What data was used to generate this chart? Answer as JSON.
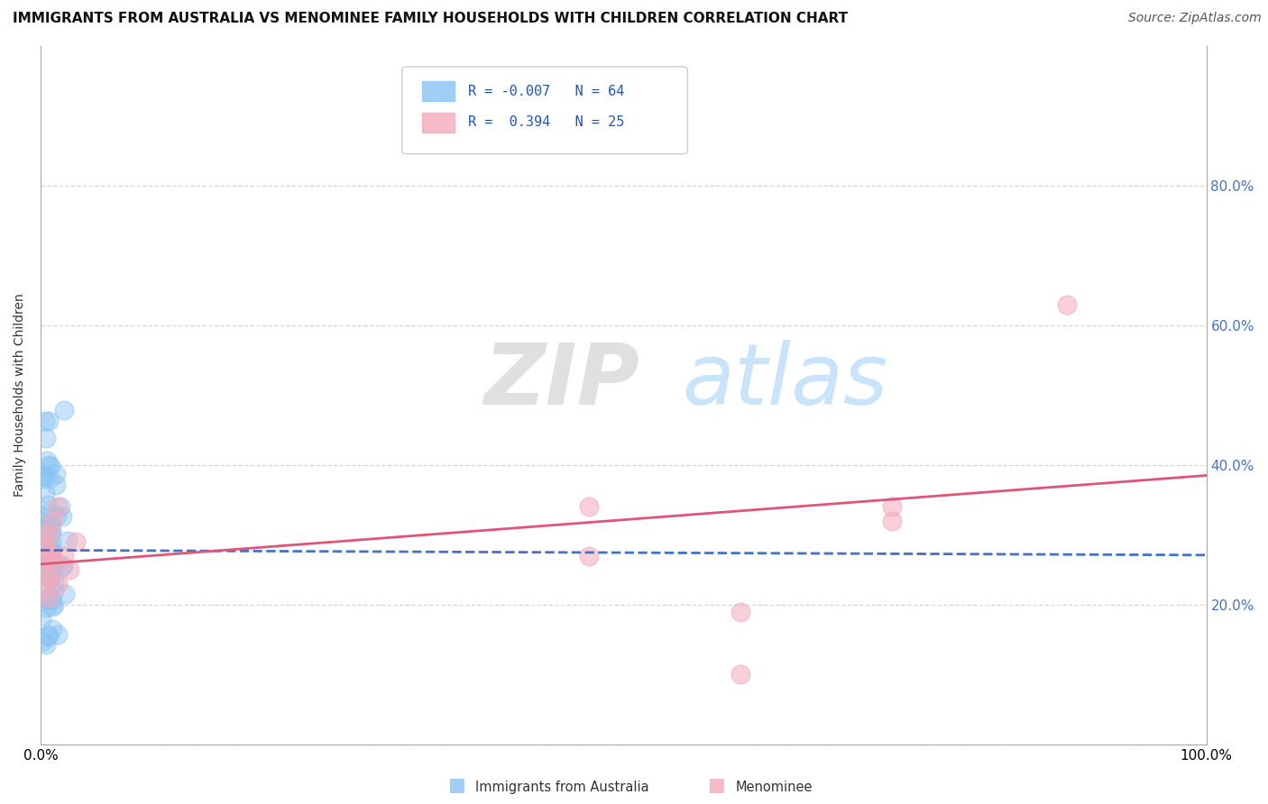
{
  "title": "IMMIGRANTS FROM AUSTRALIA VS MENOMINEE FAMILY HOUSEHOLDS WITH CHILDREN CORRELATION CHART",
  "source": "Source: ZipAtlas.com",
  "ylabel": "Family Households with Children",
  "xlim": [
    0.0,
    1.0
  ],
  "ylim": [
    0.0,
    1.0
  ],
  "xticks": [
    0.0,
    0.2,
    0.4,
    0.6,
    0.8,
    1.0
  ],
  "xtick_labels": [
    "0.0%",
    "",
    "",
    "",
    "",
    "100.0%"
  ],
  "yticks": [
    0.0,
    0.2,
    0.4,
    0.6,
    0.8
  ],
  "ytick_labels_left": [
    "",
    "",
    "",
    "",
    ""
  ],
  "ytick_labels_right": [
    "",
    "20.0%",
    "40.0%",
    "60.0%",
    "80.0%"
  ],
  "watermark_zip": "ZIP",
  "watermark_atlas": "atlas",
  "blue_scatter_color": "#89C4F4",
  "pink_scatter_color": "#F4AABB",
  "blue_line_color": "#4472C4",
  "pink_line_color": "#E05575",
  "grid_color": "#CCCCCC",
  "background_color": "#FFFFFF",
  "title_fontsize": 11,
  "axis_label_fontsize": 10,
  "tick_fontsize": 11,
  "source_fontsize": 10,
  "blue_line_x0": 0.0,
  "blue_line_y0": 0.278,
  "blue_line_x1": 1.0,
  "blue_line_y1": 0.271,
  "pink_line_x0": 0.0,
  "pink_line_y0": 0.258,
  "pink_line_x1": 1.0,
  "pink_line_y1": 0.385
}
